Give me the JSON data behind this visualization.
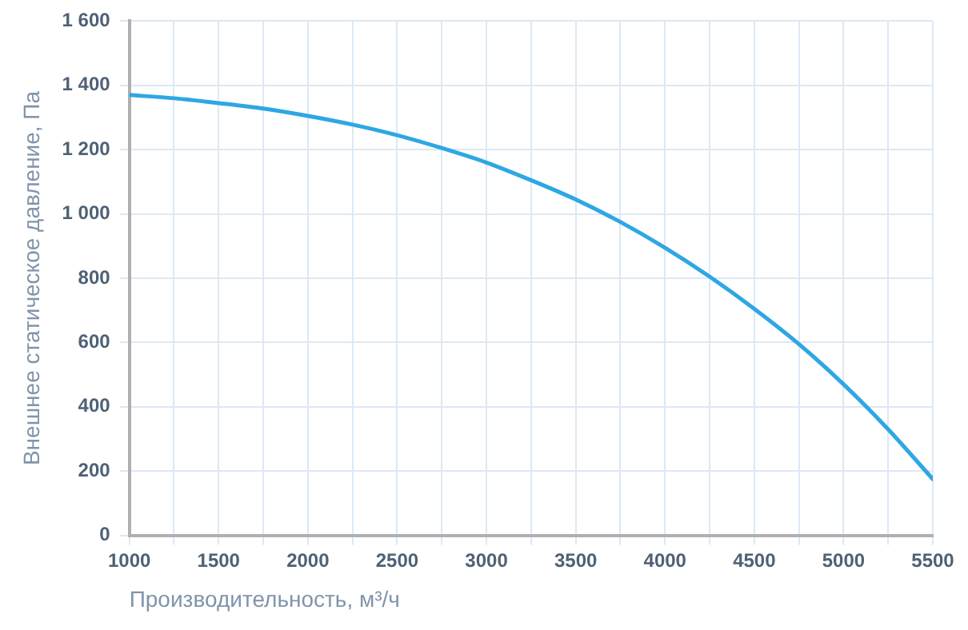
{
  "chart_data": {
    "type": "line",
    "xlabel": "Производительность, м³/ч",
    "ylabel": "Внешнее статическое давление, Па",
    "x": [
      1000,
      1250,
      1500,
      1750,
      2000,
      2250,
      2500,
      2750,
      3000,
      3250,
      3500,
      3750,
      4000,
      4250,
      4500,
      4750,
      5000,
      5250,
      5500
    ],
    "series": [
      {
        "color": "#2ea7e3",
        "values": [
          1370,
          1360,
          1345,
          1328,
          1305,
          1278,
          1245,
          1205,
          1160,
          1105,
          1045,
          975,
          895,
          805,
          705,
          595,
          470,
          330,
          175
        ]
      }
    ],
    "xlim": [
      1000,
      5500
    ],
    "xticks": [
      1000,
      {
        "value": 1250,
        "label": null
      },
      1500,
      {
        "value": 1750,
        "label": null
      },
      2000,
      {
        "value": 2250,
        "label": null
      },
      2500,
      {
        "value": 2750,
        "label": null
      },
      3000,
      {
        "value": 3250,
        "label": null
      },
      3500,
      {
        "value": 3750,
        "label": null
      },
      4000,
      {
        "value": 4250,
        "label": null
      },
      4500,
      {
        "value": 4750,
        "label": null
      },
      5000,
      {
        "value": 5250,
        "label": null
      },
      5500
    ],
    "ylim": [
      0,
      1600
    ],
    "yticks": [
      0,
      200,
      400,
      600,
      800,
      {
        "value": 1000,
        "label": "1 000"
      },
      {
        "value": 1200,
        "label": "1 200"
      },
      {
        "value": 1400,
        "label": "1 400"
      },
      {
        "value": 1600,
        "label": "1 600"
      }
    ],
    "grid": true,
    "legend": false,
    "marker": "none",
    "line_style": "solid"
  }
}
